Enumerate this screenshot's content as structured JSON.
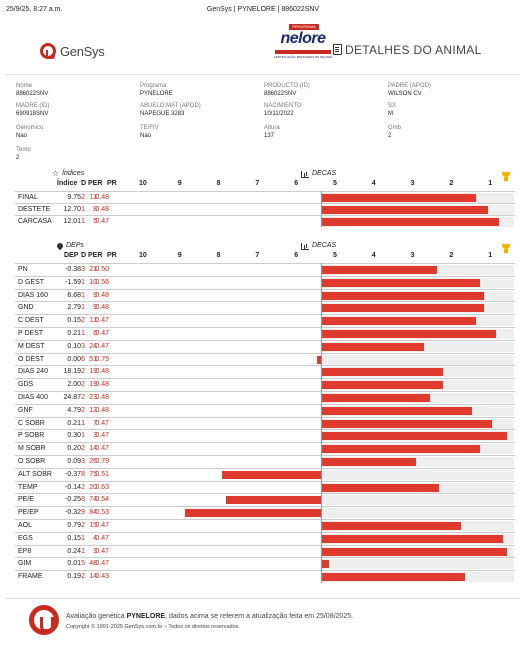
{
  "print": {
    "timestamp": "25/9/25, 8:27 a.m.",
    "title": "GenSys | PYNELORE | 886022SNV"
  },
  "brand": {
    "gensys": "GenSys",
    "program_tag": "PROGRAMA",
    "nelore": "nelore",
    "nelore_sub": "CERTIFICAÇÃO BRASILEIRA DE NELORE",
    "doc_title": "DETALHES DO ANIMAL"
  },
  "info": {
    "nome_l": "Nome",
    "nome": "886022SNV",
    "programa_l": "Programa",
    "programa": "PYNELORE",
    "producto_l": "PRODUCTO (ID)",
    "producto": "886022SNV",
    "padre_l": "PADRE (APOD)",
    "padre": "WILSON CV",
    "madre_l": "MADRE (ID)",
    "madre": "690918SNV",
    "abuelo_l": "ABUELO MAT (APOD)",
    "abuelo": "NAPEGUE 3283",
    "nac_l": "NACIMIENTO",
    "nac": "10/11/2022",
    "sx_l": "SX",
    "sx": "M",
    "genomico_l": "Genomico",
    "genomico": "Nao",
    "tefiv_l": "TE/FIV",
    "tefiv": "Nao",
    "altura_l": "Altura",
    "altura": "137",
    "grnb_l": "Gmb",
    "grnb": "2",
    "temp_l": "Temp",
    "temp": "2"
  },
  "indices": {
    "section": "Índices",
    "decas_label": "DECAS",
    "headers": [
      "Índice",
      "D",
      "PER",
      "PR"
    ],
    "deca_ticks": [
      "10",
      "9",
      "8",
      "7",
      "6",
      "5",
      "4",
      "3",
      "2",
      "1"
    ],
    "rows": [
      {
        "name": "FINAL",
        "v": "9.75",
        "d": "2",
        "per": "11",
        "pr": "0.48",
        "level": 0.8
      },
      {
        "name": "DESTETE",
        "v": "12.70",
        "d": "1",
        "per": "8",
        "pr": "0.48",
        "level": 0.86
      },
      {
        "name": "CARCASA",
        "v": "12.01",
        "d": "1",
        "per": "5",
        "pr": "0.47",
        "level": 0.92
      }
    ]
  },
  "deps": {
    "section": "DEPs",
    "decas_label": "DECAS",
    "headers": [
      "DEP",
      "D",
      "PER",
      "PR"
    ],
    "deca_ticks": [
      "10",
      "9",
      "8",
      "7",
      "6",
      "5",
      "4",
      "3",
      "2",
      "1"
    ],
    "rows": [
      {
        "name": "PN",
        "v": "-0.38",
        "d": "3",
        "per": "21",
        "pr": "0.50",
        "level": 0.6
      },
      {
        "name": "D GEST",
        "v": "-1.59",
        "d": "1",
        "per": "10",
        "pr": "0.56",
        "level": 0.82
      },
      {
        "name": "DIAS 160",
        "v": "6.68",
        "d": "1",
        "per": "9",
        "pr": "0.48",
        "level": 0.84
      },
      {
        "name": "GND",
        "v": "2.79",
        "d": "1",
        "per": "9",
        "pr": "0.48",
        "level": 0.84
      },
      {
        "name": "C DEST",
        "v": "0.15",
        "d": "2",
        "per": "11",
        "pr": "0.47",
        "level": 0.8
      },
      {
        "name": "P DEST",
        "v": "0.21",
        "d": "1",
        "per": "6",
        "pr": "0.47",
        "level": 0.9
      },
      {
        "name": "M DEST",
        "v": "0.10",
        "d": "3",
        "per": "24",
        "pr": "0.47",
        "level": 0.53
      },
      {
        "name": "O DEST",
        "v": "0.00",
        "d": "6",
        "per": "51",
        "pr": "0.79",
        "level": -0.02
      },
      {
        "name": "DIAS 240",
        "v": "18.19",
        "d": "2",
        "per": "19",
        "pr": "0.48",
        "level": 0.63
      },
      {
        "name": "GDS",
        "v": "2.00",
        "d": "2",
        "per": "19",
        "pr": "0.48",
        "level": 0.63
      },
      {
        "name": "DIAS 400",
        "v": "24.87",
        "d": "2",
        "per": "23",
        "pr": "0.48",
        "level": 0.56
      },
      {
        "name": "GNF",
        "v": "4.79",
        "d": "2",
        "per": "12",
        "pr": "0.48",
        "level": 0.78
      },
      {
        "name": "C SOBR",
        "v": "0.21",
        "d": "1",
        "per": "7",
        "pr": "0.47",
        "level": 0.88
      },
      {
        "name": "P SOBR",
        "v": "0.30",
        "d": "1",
        "per": "3",
        "pr": "0.47",
        "level": 0.96
      },
      {
        "name": "M SOBR",
        "v": "0.20",
        "d": "2",
        "per": "14",
        "pr": "0.47",
        "level": 0.82
      },
      {
        "name": "O SOBR",
        "v": "0.09",
        "d": "3",
        "per": "26",
        "pr": "0.79",
        "level": 0.49
      },
      {
        "name": "ALT SOBR",
        "v": "-0.37",
        "d": "8",
        "per": "75",
        "pr": "0.51",
        "level": -0.51
      },
      {
        "name": "TEMP",
        "v": "-0.14",
        "d": "2",
        "per": "20",
        "pr": "0.63",
        "level": 0.61
      },
      {
        "name": "PE/E",
        "v": "-0.25",
        "d": "8",
        "per": "74",
        "pr": "0.54",
        "level": -0.49
      },
      {
        "name": "PE/EP",
        "v": "-0.32",
        "d": "9",
        "per": "84",
        "pr": "0.53",
        "level": -0.7
      },
      {
        "name": "AOL",
        "v": "0.79",
        "d": "2",
        "per": "15",
        "pr": "0.47",
        "level": 0.72
      },
      {
        "name": "EGS",
        "v": "0.15",
        "d": "1",
        "per": "4",
        "pr": "0.47",
        "level": 0.94
      },
      {
        "name": "EP8",
        "v": "0.24",
        "d": "1",
        "per": "3",
        "pr": "0.47",
        "level": 0.96
      },
      {
        "name": "GIM",
        "v": "0.01",
        "d": "5",
        "per": "48",
        "pr": "0.47",
        "level": 0.04
      },
      {
        "name": "FRAME",
        "v": "0.19",
        "d": "2",
        "per": "14",
        "pr": "0.43",
        "level": 0.74
      }
    ]
  },
  "footer": {
    "line1_pre": "Avaliação genética ",
    "line1_bold": "PYNELORE",
    "line1_post": ", dados acima se referem a atualização feita em 25/08/2025.",
    "copyright": "Copyright © 1991-2025 GenSys.com.br – Todos os direitos reservados."
  }
}
